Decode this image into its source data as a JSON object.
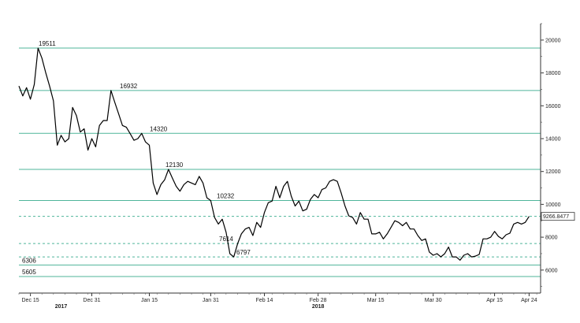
{
  "chart_data": {
    "type": "line",
    "title": "",
    "xlabel": "",
    "ylabel": "",
    "ylim": [
      4600,
      21000
    ],
    "y_ticks": [
      "20000",
      "18000",
      "16000",
      "14000",
      "12000",
      "10000",
      "8000",
      "6000"
    ],
    "x_ticks": [
      "Dec 15",
      "Dec 31",
      "Jan 15",
      "Jan 31",
      "Feb 14",
      "Feb 28",
      "Mar 15",
      "Mar 30",
      "Apr 15",
      "Apr 24"
    ],
    "x_year_labels": [
      "2017",
      "2018"
    ],
    "x_dates": [
      "2017-12-15",
      "2017-12-31",
      "2018-01-15",
      "2018-01-31",
      "2018-02-14",
      "2018-02-28",
      "2018-03-15",
      "2018-03-30",
      "2018-04-15",
      "2018-04-24"
    ],
    "last_price_label": "9266.8477",
    "levels": [
      {
        "value": 19511,
        "label": "19511",
        "style": "solid"
      },
      {
        "value": 16932,
        "label": "16932",
        "style": "solid"
      },
      {
        "value": 14320,
        "label": "14320",
        "style": "solid"
      },
      {
        "value": 12130,
        "label": "12130",
        "style": "solid"
      },
      {
        "value": 10232,
        "label": "10232",
        "style": "solid"
      },
      {
        "value": 9266.8477,
        "label": "",
        "style": "dashed"
      },
      {
        "value": 7614,
        "label": "7614",
        "style": "dashed"
      },
      {
        "value": 6797,
        "label": "6797",
        "style": "dashed"
      },
      {
        "value": 6306,
        "label": "6306",
        "style": "solid"
      },
      {
        "value": 5605,
        "label": "5605",
        "style": "solid"
      }
    ],
    "series": [
      {
        "values": [
          [
            "2017-12-12",
            17200
          ],
          [
            "2017-12-13",
            16600
          ],
          [
            "2017-12-14",
            17100
          ],
          [
            "2017-12-15",
            16400
          ],
          [
            "2017-12-16",
            17300
          ],
          [
            "2017-12-17",
            19511
          ],
          [
            "2017-12-18",
            18900
          ],
          [
            "2017-12-19",
            18000
          ],
          [
            "2017-12-20",
            17200
          ],
          [
            "2017-12-21",
            16300
          ],
          [
            "2017-12-22",
            13600
          ],
          [
            "2017-12-23",
            14200
          ],
          [
            "2017-12-24",
            13800
          ],
          [
            "2017-12-25",
            14000
          ],
          [
            "2017-12-26",
            15900
          ],
          [
            "2017-12-27",
            15400
          ],
          [
            "2017-12-28",
            14400
          ],
          [
            "2017-12-29",
            14600
          ],
          [
            "2017-12-30",
            13300
          ],
          [
            "2017-12-31",
            14000
          ],
          [
            "2018-01-01",
            13500
          ],
          [
            "2018-01-02",
            14800
          ],
          [
            "2018-01-03",
            15100
          ],
          [
            "2018-01-04",
            15100
          ],
          [
            "2018-01-05",
            16932
          ],
          [
            "2018-01-06",
            16200
          ],
          [
            "2018-01-07",
            15500
          ],
          [
            "2018-01-08",
            14800
          ],
          [
            "2018-01-09",
            14700
          ],
          [
            "2018-01-10",
            14300
          ],
          [
            "2018-01-11",
            13900
          ],
          [
            "2018-01-12",
            14000
          ],
          [
            "2018-01-13",
            14320
          ],
          [
            "2018-01-14",
            13800
          ],
          [
            "2018-01-15",
            13600
          ],
          [
            "2018-01-16",
            11300
          ],
          [
            "2018-01-17",
            10600
          ],
          [
            "2018-01-18",
            11200
          ],
          [
            "2018-01-19",
            11500
          ],
          [
            "2018-01-20",
            12130
          ],
          [
            "2018-01-21",
            11600
          ],
          [
            "2018-01-22",
            11100
          ],
          [
            "2018-01-23",
            10800
          ],
          [
            "2018-01-24",
            11200
          ],
          [
            "2018-01-25",
            11400
          ],
          [
            "2018-01-26",
            11300
          ],
          [
            "2018-01-27",
            11200
          ],
          [
            "2018-01-28",
            11700
          ],
          [
            "2018-01-29",
            11300
          ],
          [
            "2018-01-30",
            10400
          ],
          [
            "2018-01-31",
            10232
          ],
          [
            "2018-02-01",
            9200
          ],
          [
            "2018-02-02",
            8800
          ],
          [
            "2018-02-03",
            9100
          ],
          [
            "2018-02-04",
            8300
          ],
          [
            "2018-02-05",
            7000
          ],
          [
            "2018-02-06",
            6797
          ],
          [
            "2018-02-07",
            7600
          ],
          [
            "2018-02-08",
            8200
          ],
          [
            "2018-02-09",
            8500
          ],
          [
            "2018-02-10",
            8600
          ],
          [
            "2018-02-11",
            8100
          ],
          [
            "2018-02-12",
            8900
          ],
          [
            "2018-02-13",
            8600
          ],
          [
            "2018-02-14",
            9500
          ],
          [
            "2018-02-15",
            10100
          ],
          [
            "2018-02-16",
            10200
          ],
          [
            "2018-02-17",
            11100
          ],
          [
            "2018-02-18",
            10400
          ],
          [
            "2018-02-19",
            11100
          ],
          [
            "2018-02-20",
            11400
          ],
          [
            "2018-02-21",
            10500
          ],
          [
            "2018-02-22",
            9900
          ],
          [
            "2018-02-23",
            10200
          ],
          [
            "2018-02-24",
            9600
          ],
          [
            "2018-02-25",
            9700
          ],
          [
            "2018-02-26",
            10300
          ],
          [
            "2018-02-27",
            10600
          ],
          [
            "2018-02-28",
            10400
          ],
          [
            "2018-03-01",
            10900
          ],
          [
            "2018-03-02",
            11000
          ],
          [
            "2018-03-03",
            11400
          ],
          [
            "2018-03-04",
            11500
          ],
          [
            "2018-03-05",
            11400
          ],
          [
            "2018-03-06",
            10700
          ],
          [
            "2018-03-07",
            9900
          ],
          [
            "2018-03-08",
            9300
          ],
          [
            "2018-03-09",
            9200
          ],
          [
            "2018-03-10",
            8800
          ],
          [
            "2018-03-11",
            9500
          ],
          [
            "2018-03-12",
            9100
          ],
          [
            "2018-03-13",
            9100
          ],
          [
            "2018-03-14",
            8200
          ],
          [
            "2018-03-15",
            8200
          ],
          [
            "2018-03-16",
            8300
          ],
          [
            "2018-03-17",
            7900
          ],
          [
            "2018-03-18",
            8200
          ],
          [
            "2018-03-19",
            8600
          ],
          [
            "2018-03-20",
            9000
          ],
          [
            "2018-03-21",
            8900
          ],
          [
            "2018-03-22",
            8700
          ],
          [
            "2018-03-23",
            8900
          ],
          [
            "2018-03-24",
            8500
          ],
          [
            "2018-03-25",
            8500
          ],
          [
            "2018-03-26",
            8100
          ],
          [
            "2018-03-27",
            7800
          ],
          [
            "2018-03-28",
            7900
          ],
          [
            "2018-03-29",
            7100
          ],
          [
            "2018-03-30",
            6900
          ],
          [
            "2018-03-31",
            7000
          ],
          [
            "2018-04-01",
            6800
          ],
          [
            "2018-04-02",
            7000
          ],
          [
            "2018-04-03",
            7400
          ],
          [
            "2018-04-04",
            6800
          ],
          [
            "2018-04-05",
            6800
          ],
          [
            "2018-04-06",
            6600
          ],
          [
            "2018-04-07",
            6900
          ],
          [
            "2018-04-08",
            7000
          ],
          [
            "2018-04-09",
            6800
          ],
          [
            "2018-04-10",
            6850
          ],
          [
            "2018-04-11",
            6950
          ],
          [
            "2018-04-12",
            7900
          ],
          [
            "2018-04-13",
            7900
          ],
          [
            "2018-04-14",
            8000
          ],
          [
            "2018-04-15",
            8350
          ],
          [
            "2018-04-16",
            8050
          ],
          [
            "2018-04-17",
            7900
          ],
          [
            "2018-04-18",
            8150
          ],
          [
            "2018-04-19",
            8250
          ],
          [
            "2018-04-20",
            8800
          ],
          [
            "2018-04-21",
            8900
          ],
          [
            "2018-04-22",
            8800
          ],
          [
            "2018-04-23",
            8900
          ],
          [
            "2018-04-24",
            9266.8477
          ]
        ]
      }
    ],
    "colors": {
      "level_line": "#4fb59a",
      "series_line": "#000000",
      "axis": "#333333",
      "price_box_bg": "#ffffff",
      "price_box_border": "#333333"
    }
  }
}
